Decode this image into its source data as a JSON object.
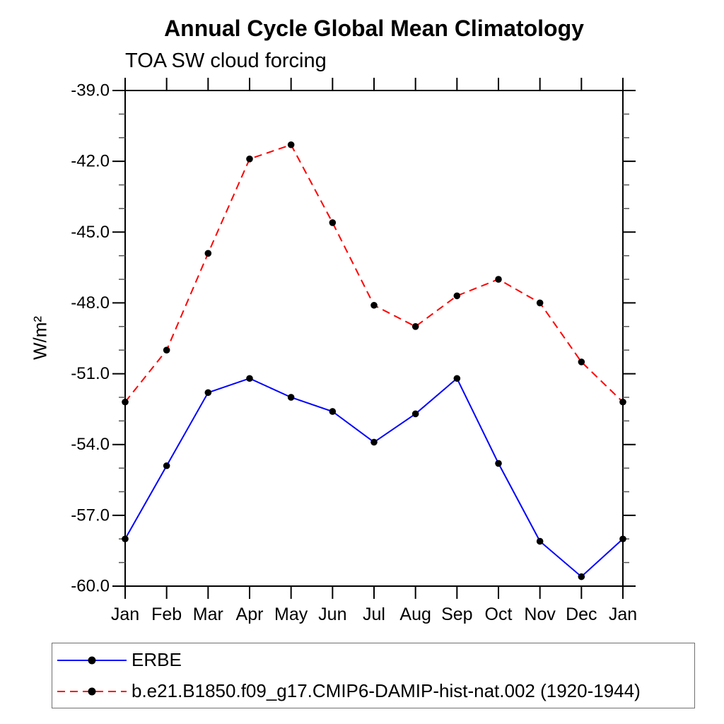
{
  "page": {
    "title": "Annual Cycle Global Mean Climatology",
    "subtitle": "TOA SW cloud forcing"
  },
  "chart_data": {
    "type": "line",
    "title": "Annual Cycle Global Mean Climatology",
    "subtitle": "TOA SW cloud forcing",
    "xlabel": "",
    "ylabel": "W/m²",
    "categories": [
      "Jan",
      "Feb",
      "Mar",
      "Apr",
      "May",
      "Jun",
      "Jul",
      "Aug",
      "Sep",
      "Oct",
      "Nov",
      "Dec",
      "Jan"
    ],
    "ylim": [
      -60.0,
      -39.0
    ],
    "y_major_ticks": [
      -39.0,
      -42.0,
      -45.0,
      -48.0,
      -51.0,
      -54.0,
      -57.0,
      -60.0
    ],
    "y_minor_step": 1.0,
    "grid": false,
    "legend_position": "bottom-left-box",
    "series": [
      {
        "name": "ERBE",
        "color": "#0000ff",
        "line_style": "solid",
        "marker": "filled-circle",
        "marker_color": "#000000",
        "values": [
          -58.0,
          -54.9,
          -51.8,
          -51.2,
          -52.0,
          -52.6,
          -53.9,
          -52.7,
          -51.2,
          -54.8,
          -58.1,
          -59.6,
          -58.0
        ]
      },
      {
        "name": "b.e21.B1850.f09_g17.CMIP6-DAMIP-hist-nat.002 (1920-1944)",
        "color": "#ff0000",
        "line_style": "dashed",
        "marker": "filled-circle",
        "marker_color": "#000000",
        "values": [
          -52.2,
          -50.0,
          -45.9,
          -41.9,
          -41.3,
          -44.6,
          -48.1,
          -49.0,
          -47.7,
          -47.0,
          -48.0,
          -50.5,
          -52.2
        ]
      }
    ]
  },
  "colors": {
    "axis": "#000000",
    "minor_tick": "#555555",
    "background": "#ffffff",
    "legend_border": "#707070"
  }
}
